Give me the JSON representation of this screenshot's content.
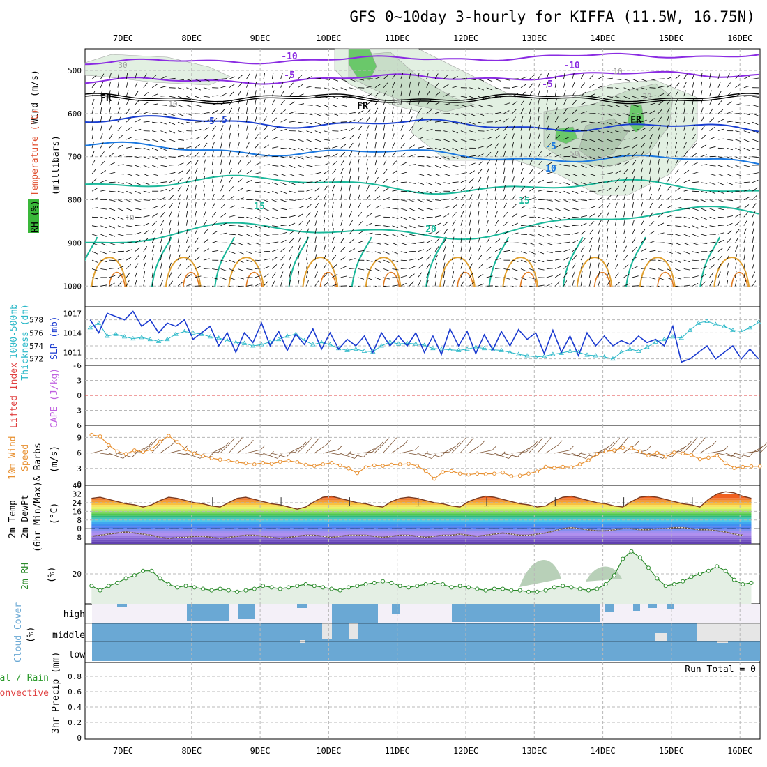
{
  "title": "GFS 0~10day 3-hourly for KIFFA (11.5W, 16.75N)",
  "dates": [
    "7DEC",
    "8DEC",
    "9DEC",
    "10DEC",
    "11DEC",
    "12DEC",
    "13DEC",
    "14DEC",
    "15DEC",
    "16DEC"
  ],
  "colors": {
    "purple": "#8a2be2",
    "blue_dark": "#1a3fd0",
    "blue_mid": "#1a78e0",
    "blue_light": "#1ab0e0",
    "teal": "#1ab89a",
    "orange": "#e0a030",
    "slp": "#1a3ad0",
    "thickness": "#2ab8c8",
    "rh": "#2a8a2a",
    "cloud": "#6aa8d4",
    "wind10": "#e89030",
    "cape_zero": "#e04040"
  },
  "panels": {
    "upper": {
      "labels": [
        {
          "text": "Wind (m/s)",
          "color": "#000000"
        },
        {
          "text": "Temperature (°C)",
          "color": "#e05030"
        },
        {
          "text": "RH (%)",
          "color": "#000000"
        }
      ],
      "axis_label": "(millibars)",
      "levels": [
        "500",
        "600",
        "700",
        "800",
        "900",
        "1000"
      ],
      "contour_labels": [
        "-10",
        "-10",
        "-5",
        "-5",
        "FR",
        "FR",
        "FR",
        "-5",
        "-5",
        "5",
        "10",
        "15",
        "15",
        "20",
        "30",
        "10",
        "30",
        "30",
        "50",
        "10",
        "10",
        "50"
      ]
    },
    "thickness": {
      "labels": [
        "1000-500mb",
        "Thickness (dm)",
        "SLP (mb)"
      ],
      "left_ticks": [
        "578",
        "576",
        "574",
        "572"
      ],
      "right_ticks": [
        "1017",
        "1014",
        "1011"
      ]
    },
    "stability": {
      "labels": [
        "Lifted Index",
        "CAPE (J/kg)"
      ],
      "ticks": [
        "-6",
        "-3",
        "0",
        "3",
        "6"
      ]
    },
    "wind10": {
      "labels": [
        "10m Wind",
        "Speed",
        "& Barbs",
        "(m/s)"
      ],
      "ticks": [
        "9",
        "6",
        "3",
        "0"
      ]
    },
    "temp2m": {
      "labels": [
        "2m Temp",
        "2m DewPt",
        "(6hr Min/Max)",
        "(°C)"
      ],
      "ticks": [
        "40",
        "32",
        "24",
        "16",
        "8",
        "0",
        "-8"
      ]
    },
    "rh2m": {
      "labels": [
        "2m RH",
        "(%)"
      ],
      "ticks": [
        "20"
      ]
    },
    "cloud": {
      "labels": [
        "Cloud Cover",
        "(%)"
      ],
      "levels": [
        "high",
        "middle",
        "low"
      ]
    },
    "precip": {
      "labels": [
        "Total / Rain",
        "Convective",
        "3hr Precip (mm)"
      ],
      "run_total": "Run Total = 0",
      "ticks": [
        "0.8",
        "0.6",
        "0.4",
        "0.2",
        "0"
      ]
    }
  },
  "chart_data": [
    {
      "type": "line",
      "title": "Sea Level Pressure",
      "ylabel": "SLP (mb)",
      "ylim": [
        1009,
        1018
      ],
      "x_start": "6DEC 12Z",
      "x_step_hours": 3,
      "values": [
        1016,
        1014,
        1017,
        1016.5,
        1016,
        1017.3,
        1015,
        1016,
        1014,
        1015.5,
        1015,
        1016,
        1013,
        1014,
        1015,
        1012,
        1014,
        1011,
        1014,
        1012.5,
        1015.5,
        1012,
        1014.2,
        1011.3,
        1013.8,
        1012.2,
        1014.6,
        1011.5,
        1014,
        1011.5,
        1013,
        1012,
        1013.5,
        1011,
        1014,
        1012,
        1013.5,
        1012,
        1014,
        1011,
        1013.5,
        1010.7,
        1014.6,
        1012,
        1014.2,
        1010.8,
        1013.7,
        1011.4,
        1014.2,
        1012,
        1014.5,
        1013,
        1014,
        1010.8,
        1014.4,
        1011,
        1013.5,
        1010.5,
        1014,
        1012,
        1013.5,
        1012,
        1012.8,
        1012.2,
        1013.5,
        1012.5,
        1013,
        1012,
        1015,
        1009.5,
        1010,
        1011,
        1012,
        1010,
        1011,
        1012,
        1010,
        1011.5,
        1010,
        1012,
        1012.5,
        1013
      ]
    },
    {
      "type": "line",
      "title": "1000-500mb Thickness",
      "ylabel": "Thickness (dm)",
      "ylim": [
        571,
        580
      ],
      "x_start": "6DEC 12Z",
      "x_step_hours": 3,
      "values": [
        576.8,
        577.5,
        575.5,
        575.8,
        575.4,
        575.1,
        575.3,
        575,
        574.7,
        575,
        575.8,
        576.2,
        576,
        575.8,
        575.4,
        575.2,
        574.8,
        574.5,
        574.4,
        574,
        574.2,
        574.6,
        575,
        575.5,
        575.8,
        574.8,
        574.2,
        574.5,
        574.2,
        573.6,
        573.3,
        573.5,
        573.2,
        573.1,
        574,
        574.6,
        574.3,
        574.4,
        574.3,
        574.1,
        573.6,
        573.5,
        573.4,
        573.3,
        573.5,
        573.8,
        573.6,
        573.4,
        573.3,
        573,
        572.7,
        572.5,
        572.3,
        572.4,
        572.7,
        572.9,
        573.2,
        573,
        572.6,
        572.5,
        572.3,
        572,
        573,
        573.5,
        573.2,
        573.8,
        574.6,
        575,
        575.4,
        575.2,
        576.4,
        577.5,
        577.8,
        577.3,
        577,
        576.4,
        576.2,
        576.8,
        577.6,
        578.2,
        577.6,
        576.8
      ]
    },
    {
      "type": "line",
      "title": "10m Wind Speed",
      "ylabel": "(m/s)",
      "ylim": [
        0,
        10
      ],
      "x_start": "6DEC 12Z",
      "x_step_hours": 3,
      "values": [
        9.5,
        9.2,
        7.5,
        6.3,
        5.8,
        6.5,
        6.2,
        6.7,
        8.2,
        9.3,
        8.1,
        6.7,
        5.9,
        5.4,
        5.0,
        4.7,
        4.5,
        4.2,
        4.0,
        3.8,
        4.1,
        3.9,
        4.3,
        4.5,
        4.2,
        3.7,
        3.5,
        3.8,
        4.1,
        3.6,
        3.0,
        2.1,
        3.2,
        3.6,
        3.5,
        3.7,
        3.8,
        3.9,
        3.5,
        2.5,
        1.0,
        2.3,
        2.5,
        2.0,
        1.8,
        2.0,
        1.9,
        2.0,
        2.2,
        1.5,
        1.6,
        2.0,
        2.4,
        3.3,
        3.1,
        3.3,
        3.2,
        3.8,
        4.6,
        5.8,
        6.3,
        6.5,
        7.0,
        6.9,
        6.3,
        5.5,
        6.0,
        5.3,
        6.1,
        5.9,
        5.6,
        4.8,
        5.1,
        5.5,
        4.0,
        3.1,
        3.3,
        3.4,
        3.4,
        3.3,
        6.1,
        4.6,
        3.3,
        3.3,
        3.3,
        3.0
      ]
    },
    {
      "type": "area",
      "title": "2m Temperature",
      "ylabel": "(°C)",
      "ylim": [
        -14,
        40
      ],
      "x_start": "6DEC 12Z",
      "x_step_hours": 3,
      "values": [
        28,
        29,
        27,
        25,
        23,
        22,
        20,
        22,
        26,
        29,
        28,
        26,
        24,
        23,
        21,
        20,
        24,
        28,
        29,
        27,
        25,
        23,
        22,
        20,
        18,
        20,
        25,
        29,
        30,
        28,
        26,
        24,
        23,
        21,
        20,
        25,
        28,
        29,
        28,
        26,
        24,
        23,
        21,
        20,
        25,
        28,
        30,
        29,
        27,
        25,
        23,
        22,
        20,
        21,
        26,
        29,
        30,
        28,
        26,
        24,
        23,
        21,
        20,
        25,
        29,
        30,
        29,
        27,
        25,
        23,
        22,
        20,
        27,
        32,
        34,
        33,
        30,
        28,
        26,
        25,
        24,
        29,
        33,
        35,
        33,
        30,
        28,
        26,
        25,
        24
      ]
    },
    {
      "type": "line",
      "title": "2m Dew Point",
      "ylabel": "(°C)",
      "ylim": [
        -14,
        40
      ],
      "x_start": "6DEC 12Z",
      "x_step_hours": 3,
      "values": [
        -7,
        -6,
        -5,
        -4,
        -3,
        -4,
        -5,
        -6,
        -8,
        -9,
        -8,
        -8,
        -7,
        -7,
        -8,
        -9,
        -8,
        -7,
        -6,
        -6,
        -7,
        -8,
        -9,
        -8,
        -7,
        -6,
        -6,
        -7,
        -8,
        -7,
        -6,
        -6,
        -6,
        -7,
        -8,
        -7,
        -6,
        -6,
        -7,
        -8,
        -7,
        -6,
        -6,
        -5,
        -6,
        -7,
        -6,
        -5,
        -4,
        -5,
        -6,
        -6,
        -5,
        -4,
        -2,
        0,
        1,
        0,
        -1,
        -2,
        -2,
        -1,
        0,
        0,
        -1,
        -1,
        0,
        0,
        1,
        1,
        0,
        -1,
        -1,
        -2,
        -3,
        -5,
        -6
      ]
    },
    {
      "type": "area",
      "title": "2m Relative Humidity",
      "ylabel": "(%)",
      "ylim": [
        0,
        40
      ],
      "x_start": "6DEC 12Z",
      "x_step_hours": 3,
      "values": [
        12,
        9,
        12,
        14,
        17,
        19,
        22,
        22,
        17,
        13,
        11,
        12,
        11,
        10,
        9,
        10,
        9,
        8,
        9,
        10,
        12,
        11,
        10,
        11,
        12,
        13,
        12,
        11,
        10,
        9,
        11,
        12,
        13,
        14,
        15,
        14,
        12,
        11,
        12,
        13,
        14,
        13,
        11,
        12,
        11,
        10,
        9,
        10,
        10,
        9,
        9,
        8,
        8,
        9,
        11,
        12,
        11,
        10,
        9,
        10,
        13,
        19,
        30,
        35,
        31,
        24,
        17,
        12,
        13,
        15,
        18,
        20,
        22,
        25,
        22,
        16,
        13,
        14,
        16,
        18,
        19,
        21,
        19,
        13,
        11,
        12,
        12,
        13,
        13,
        12,
        13
      ]
    },
    {
      "type": "bar",
      "title": "3hr Precip",
      "ylabel": "3hr Precip (mm)",
      "ylim": [
        0,
        1
      ],
      "values": [
        0
      ]
    }
  ]
}
